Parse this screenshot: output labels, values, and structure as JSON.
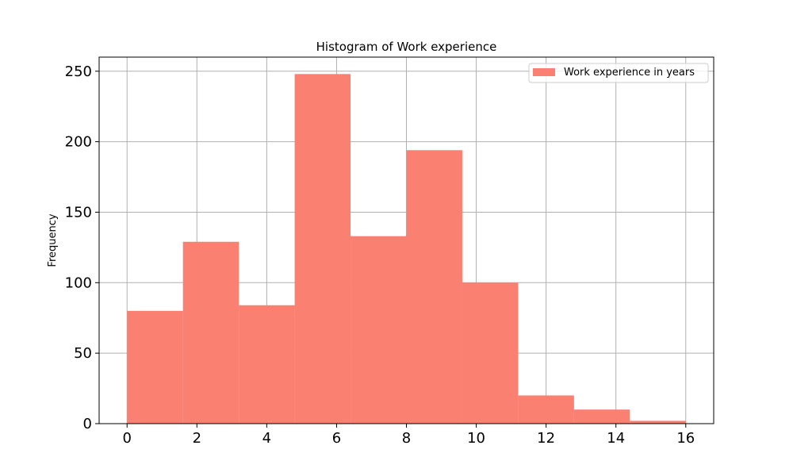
{
  "chart_data": {
    "type": "bar",
    "histogram": true,
    "title": "Histogram of Work experience",
    "xlabel": "",
    "ylabel": "Frequency",
    "xlim": [
      -0.8,
      16.8
    ],
    "ylim": [
      0,
      260
    ],
    "x_ticks": [
      0,
      2,
      4,
      6,
      8,
      10,
      12,
      14,
      16
    ],
    "y_ticks": [
      0,
      50,
      100,
      150,
      200,
      250
    ],
    "grid": true,
    "legend_position": "top-right",
    "bins": [
      {
        "start": 0.0,
        "end": 1.6,
        "value": 80
      },
      {
        "start": 1.6,
        "end": 3.2,
        "value": 129
      },
      {
        "start": 3.2,
        "end": 4.8,
        "value": 84
      },
      {
        "start": 4.8,
        "end": 6.4,
        "value": 248
      },
      {
        "start": 6.4,
        "end": 8.0,
        "value": 133
      },
      {
        "start": 8.0,
        "end": 9.6,
        "value": 194
      },
      {
        "start": 9.6,
        "end": 11.2,
        "value": 100
      },
      {
        "start": 11.2,
        "end": 12.8,
        "value": 20
      },
      {
        "start": 12.8,
        "end": 14.4,
        "value": 10
      },
      {
        "start": 14.4,
        "end": 16.0,
        "value": 2
      }
    ],
    "series": [
      {
        "name": "Work experience in years",
        "color": "#fa8072"
      }
    ],
    "colors": {
      "bar": "#fa8072",
      "grid": "#b0b0b0",
      "axes": "#000000"
    }
  }
}
